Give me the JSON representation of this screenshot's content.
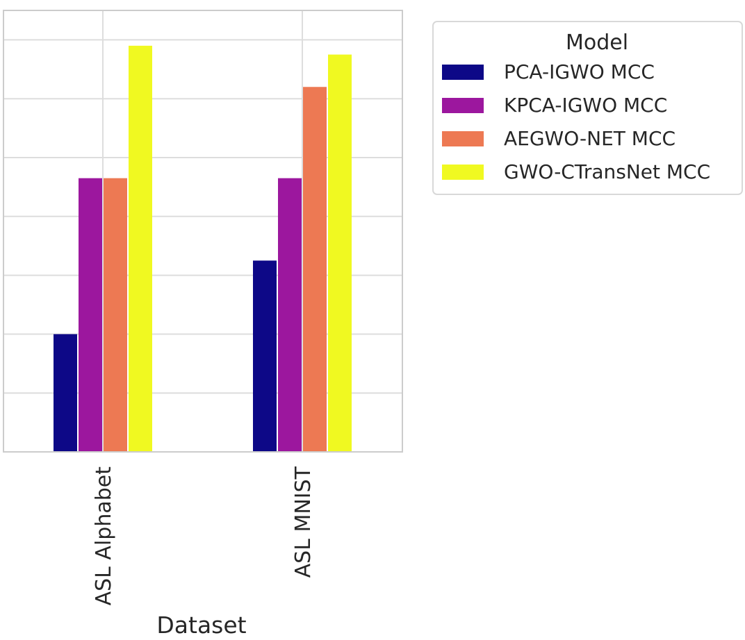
{
  "chart_data": {
    "type": "bar",
    "title": "",
    "xlabel": "Dataset",
    "ylabel": "",
    "categories": [
      "ASL Alphabet",
      "ASL MNIST"
    ],
    "series": [
      {
        "name": "PCA-IGWO MCC",
        "color": "#0d0887",
        "values": [
          0.984,
          0.9865
        ]
      },
      {
        "name": "KPCA-IGWO MCC",
        "color": "#9c179e",
        "values": [
          0.9893,
          0.9893
        ]
      },
      {
        "name": "AEGWO-NET MCC",
        "color": "#ed7953",
        "values": [
          0.9893,
          0.9924
        ]
      },
      {
        "name": "GWO-CTransNet MCC",
        "color": "#f0f921",
        "values": [
          0.9938,
          0.9935
        ]
      }
    ],
    "ylim": [
      0.98,
      0.995
    ],
    "ytick_step": 0.002,
    "grid": true,
    "legend": {
      "title": "Model",
      "position": "outside-top-right"
    }
  }
}
